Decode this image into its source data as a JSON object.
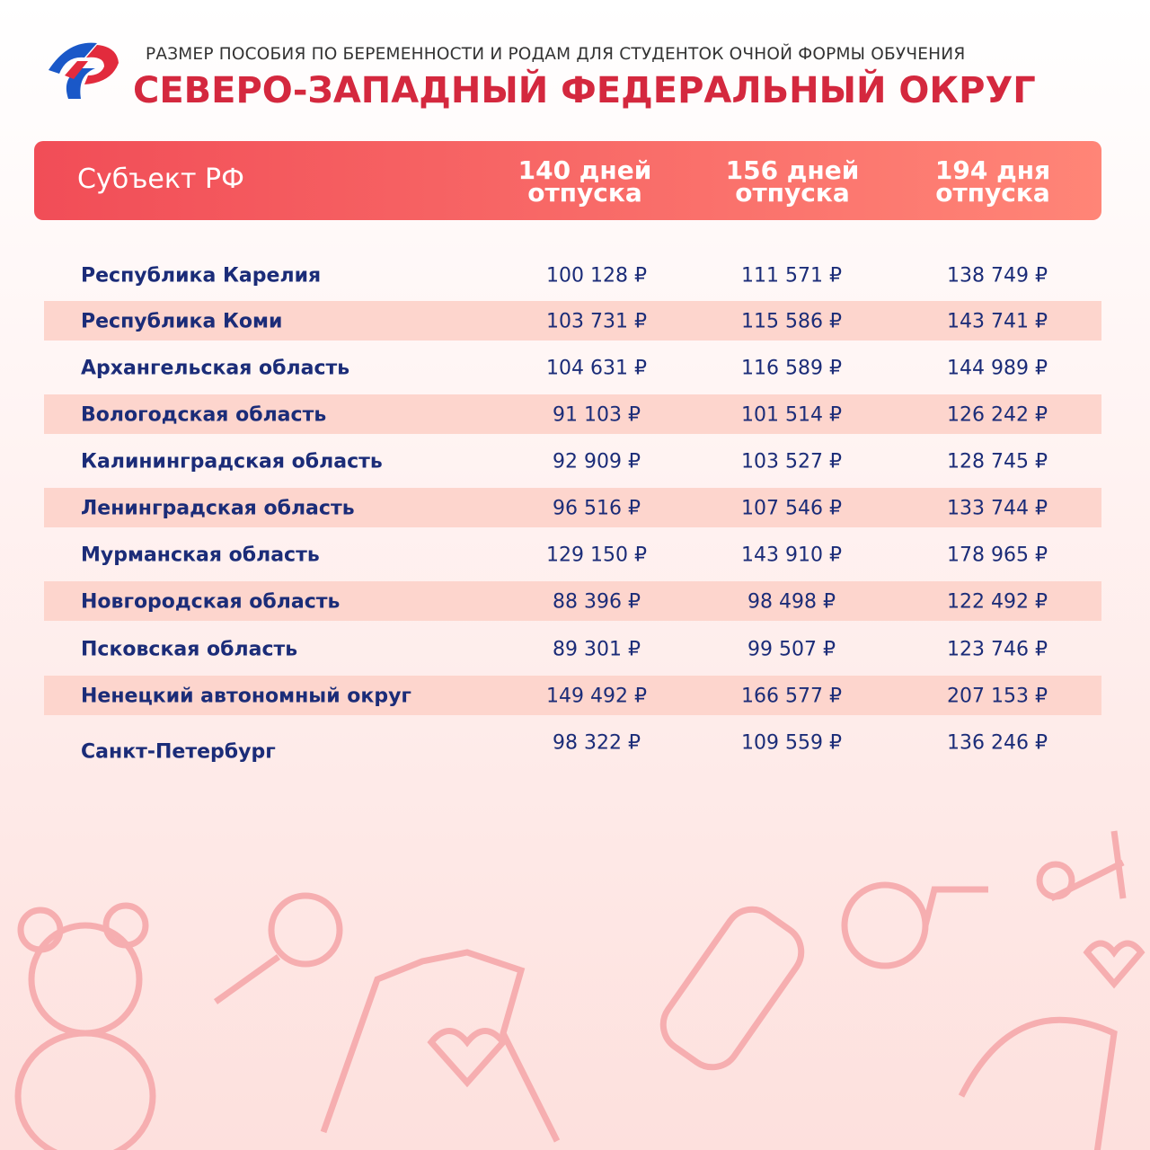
{
  "header": {
    "subtitle": "РАЗМЕР ПОСОБИЯ ПО БЕРЕМЕННОСТИ И РОДАМ ДЛЯ СТУДЕНТОК ОЧНОЙ ФОРМЫ ОБУЧЕНИЯ",
    "title": "СЕВЕРО-ЗАПАДНЫЙ ФЕДЕРАЛЬНЫЙ ОКРУГ"
  },
  "table": {
    "columns": [
      [
        "Субъект РФ"
      ],
      [
        "140 дней",
        "отпуска"
      ],
      [
        "156 дней",
        "отпуска"
      ],
      [
        "194 дня",
        "отпуска"
      ]
    ],
    "rows": [
      [
        "Республика Карелия",
        "100 128 ₽",
        "111 571 ₽",
        "138 749 ₽"
      ],
      [
        "Республика Коми",
        "103 731 ₽",
        "115 586 ₽",
        "143 741 ₽"
      ],
      [
        "Архангельская область",
        "104 631 ₽",
        "116 589 ₽",
        "144 989 ₽"
      ],
      [
        "Вологодская область",
        "91 103 ₽",
        "101 514 ₽",
        "126 242 ₽"
      ],
      [
        "Калининградская область",
        "92 909 ₽",
        "103 527 ₽",
        "128 745 ₽"
      ],
      [
        "Ленинградская область",
        "96 516 ₽",
        "107 546 ₽",
        "133 744 ₽"
      ],
      [
        "Мурманская область",
        "129 150 ₽",
        "143 910 ₽",
        "178 965 ₽"
      ],
      [
        "Новгородская область",
        "88 396 ₽",
        "98 498 ₽",
        "122 492 ₽"
      ],
      [
        "Псковская область",
        "89 301 ₽",
        "99 507 ₽",
        "123 746 ₽"
      ],
      [
        "Ненецкий автономный округ",
        "149 492 ₽",
        "166 577 ₽",
        "207 153 ₽"
      ],
      [
        "Санкт-Петербург",
        "98 322 ₽",
        "109 559 ₽",
        "136 246 ₽"
      ]
    ]
  }
}
